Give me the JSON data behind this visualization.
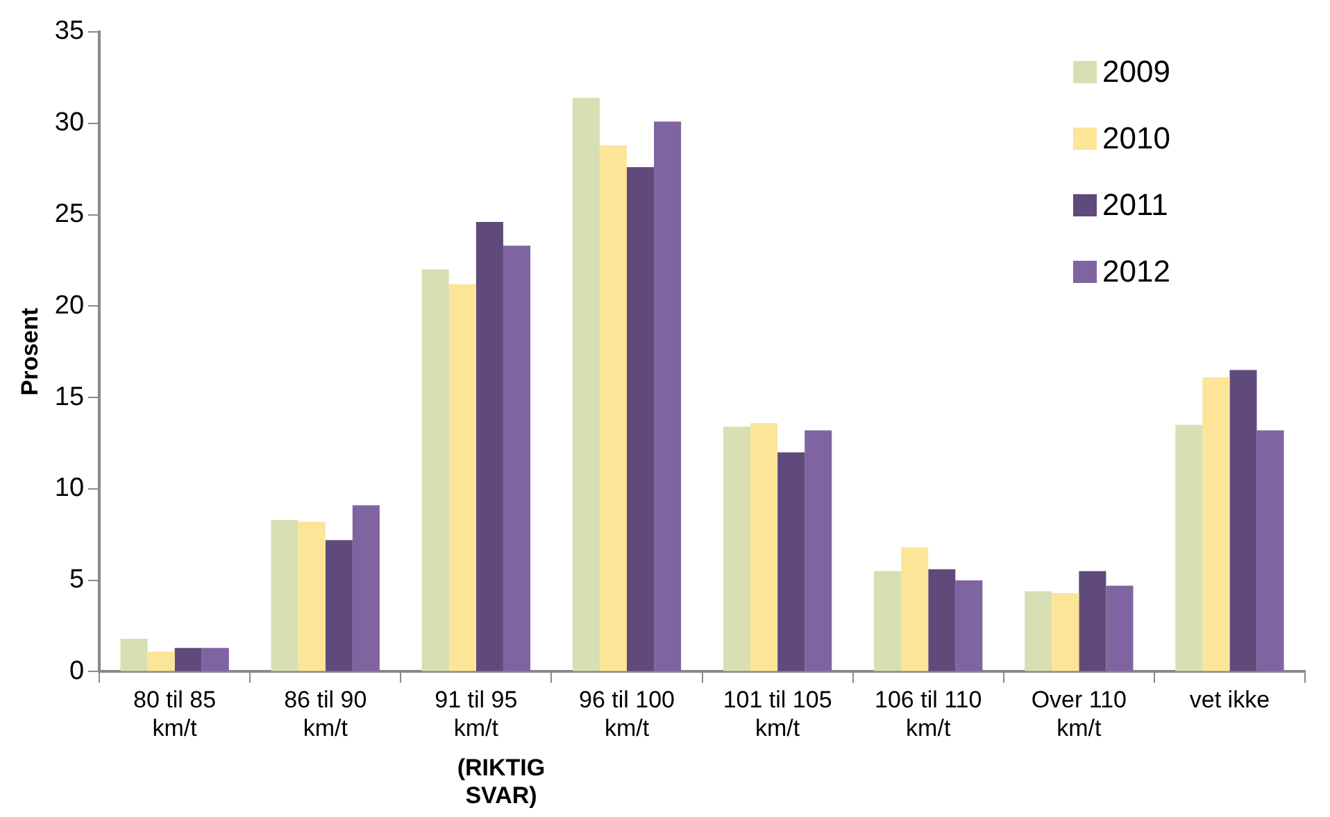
{
  "chart_data": {
    "type": "bar",
    "ylabel": "Prosent",
    "categories": [
      "80 til 85\nkm/t",
      "86 til 90\nkm/t",
      "91 til 95\nkm/t",
      "96 til 100\nkm/t",
      "101 til 105\nkm/t",
      "106 til 110\nkm/t",
      "Over 110\nkm/t",
      "vet ikke"
    ],
    "series": [
      {
        "name": "2009",
        "color": "#d7dfb3",
        "values": [
          1.8,
          8.3,
          22.0,
          31.4,
          13.4,
          5.5,
          4.4,
          13.5
        ]
      },
      {
        "name": "2010",
        "color": "#fde598",
        "values": [
          1.1,
          8.2,
          21.2,
          28.8,
          13.6,
          6.8,
          4.3,
          16.1
        ]
      },
      {
        "name": "2011",
        "color": "#604a7b",
        "values": [
          1.3,
          7.2,
          24.6,
          27.6,
          12.0,
          5.6,
          5.5,
          16.5
        ]
      },
      {
        "name": "2012",
        "color": "#8064a2",
        "values": [
          1.3,
          9.1,
          23.3,
          30.1,
          13.2,
          5.0,
          4.7,
          13.2
        ]
      }
    ],
    "ylim": [
      0,
      35
    ],
    "yticks": [
      0,
      5,
      10,
      15,
      20,
      25,
      30,
      35
    ],
    "grid": false,
    "legend": "top right",
    "annotations": [
      "(RIKTIG\nSVAR)"
    ]
  }
}
